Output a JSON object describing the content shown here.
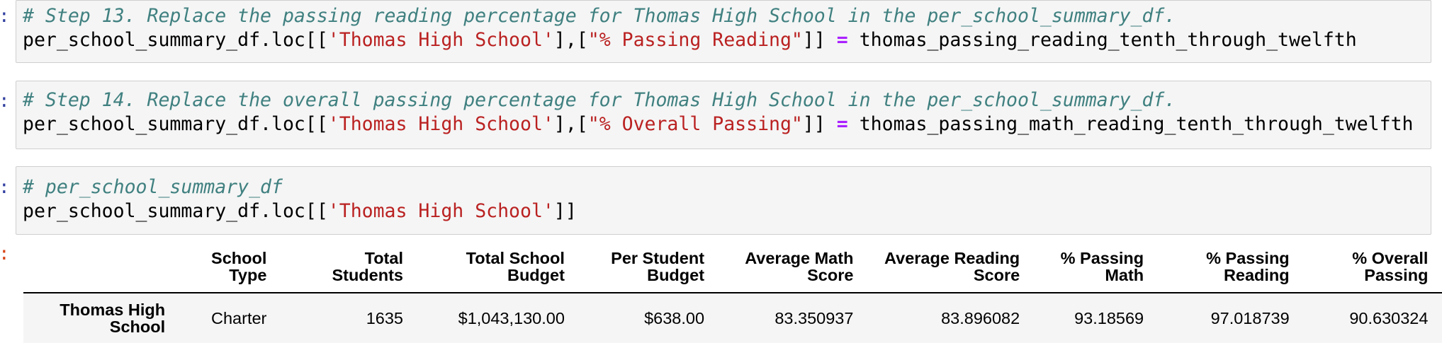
{
  "cells": [
    {
      "prompt": ":",
      "comment": "# Step 13. Replace the passing reading percentage for Thomas High School in the per_school_summary_df.",
      "code": {
        "obj": "per_school_summary_df.loc[[",
        "str1": "'Thomas High School'",
        "mid": "],[",
        "str2": "\"% Passing Reading\"",
        "close": "]]",
        "op": "=",
        "rhs": "thomas_passing_reading_tenth_through_twelfth"
      }
    },
    {
      "prompt": ":",
      "comment": "# Step 14. Replace the overall passing percentage for Thomas High School in the per_school_summary_df.",
      "code": {
        "obj": "per_school_summary_df.loc[[",
        "str1": "'Thomas High School'",
        "mid": "],[",
        "str2": "\"% Overall Passing\"",
        "close": "]]",
        "op": "=",
        "rhs": "thomas_passing_math_reading_tenth_through_twelfth"
      }
    },
    {
      "prompt": ":",
      "comment": "# per_school_summary_df",
      "code": {
        "obj": "per_school_summary_df.loc[[",
        "str1": "'Thomas High School'",
        "close": "]]"
      }
    }
  ],
  "output": {
    "prompt": ":",
    "columns": [
      [
        "School",
        "Type"
      ],
      [
        "Total",
        "Students"
      ],
      [
        "Total School",
        "Budget"
      ],
      [
        "Per Student",
        "Budget"
      ],
      [
        "Average Math",
        "Score"
      ],
      [
        "Average Reading",
        "Score"
      ],
      [
        "% Passing",
        "Math"
      ],
      [
        "% Passing",
        "Reading"
      ],
      [
        "% Overall",
        "Passing"
      ]
    ],
    "index_label": [
      "Thomas High",
      "School"
    ],
    "row": [
      "Charter",
      "1635",
      "$1,043,130.00",
      "$638.00",
      "83.350937",
      "83.896082",
      "93.18569",
      "97.018739",
      "90.630324"
    ]
  }
}
